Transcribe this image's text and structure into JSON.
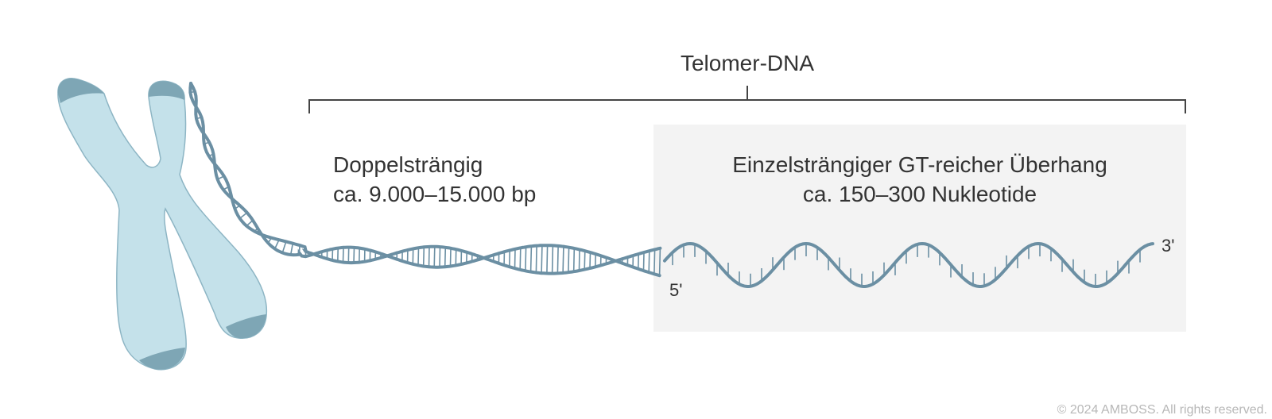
{
  "diagram": {
    "title": "Telomer-DNA",
    "double_strand": {
      "heading": "Doppelsträngig",
      "length": "ca. 9.000–15.000 bp"
    },
    "single_strand": {
      "heading": "Einzelsträngiger GT-reicher Überhang",
      "length": "ca. 150–300 Nukleotide"
    },
    "end_5": "5'",
    "end_3": "3'",
    "copyright": "© 2024 AMBOSS. All rights reserved.",
    "colors": {
      "chromosome_fill": "#c4e1ea",
      "chromosome_outline": "#8db5c4",
      "telomere_cap": "#7ea6b5",
      "dna_strand": "#6b8fa3",
      "overhang_box": "#f3f3f3",
      "bracket": "#444444"
    },
    "icons": [
      "chromosome-icon",
      "dna-helix-icon"
    ]
  }
}
